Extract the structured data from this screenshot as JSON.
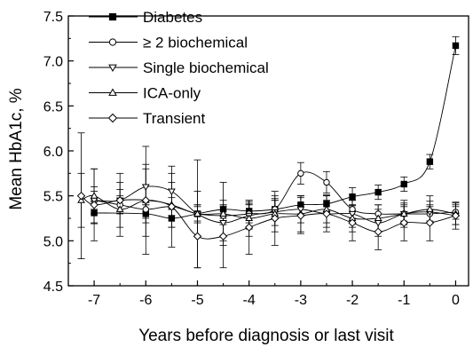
{
  "chart_data": {
    "type": "line",
    "title": "",
    "xlabel": "Years before diagnosis or last visit",
    "ylabel": "Mean HbA1c, %",
    "xlim": [
      -7.5,
      0.25
    ],
    "ylim": [
      4.5,
      7.5
    ],
    "xticks": [
      -7,
      -6,
      -5,
      -4,
      -3,
      -2,
      -1,
      0
    ],
    "yticks": [
      4.5,
      5.0,
      5.5,
      6.0,
      6.5,
      7.0,
      7.5
    ],
    "xtick_labels": [
      "-7",
      "-6",
      "-5",
      "-4",
      "-3",
      "-2",
      "-1",
      "0"
    ],
    "ytick_labels": [
      "4.5",
      "5.0",
      "5.5",
      "6.0",
      "6.5",
      "7.0",
      "7.5"
    ],
    "grid": false,
    "legend_position": "top-left",
    "series": [
      {
        "name": "Diabetes",
        "marker": "filled-square",
        "x": [
          -7,
          -6,
          -5.5,
          -5,
          -4.5,
          -4,
          -3.5,
          -3,
          -2.5,
          -2,
          -1.5,
          -1,
          -0.5,
          0
        ],
        "y": [
          5.31,
          5.3,
          5.25,
          5.3,
          5.35,
          5.33,
          5.35,
          5.4,
          5.41,
          5.49,
          5.54,
          5.63,
          5.88,
          7.17
        ],
        "err": [
          0.12,
          0.1,
          0.1,
          0.08,
          0.1,
          0.08,
          0.1,
          0.1,
          0.1,
          0.1,
          0.08,
          0.08,
          0.08,
          0.1
        ]
      },
      {
        "name": "≥ 2 biochemical",
        "marker": "open-circle",
        "x": [
          -7,
          -6.5,
          -6,
          -5.5,
          -5,
          -4.5,
          -4,
          -3.5,
          -3,
          -2.5,
          -2,
          -1.5,
          -1,
          -0.5,
          0
        ],
        "y": [
          5.45,
          5.4,
          5.35,
          5.38,
          5.3,
          5.28,
          5.3,
          5.35,
          5.75,
          5.65,
          5.35,
          5.3,
          5.3,
          5.3,
          5.32
        ],
        "err": [
          0.1,
          0.1,
          0.1,
          0.1,
          0.1,
          0.1,
          0.1,
          0.1,
          0.12,
          0.12,
          0.1,
          0.1,
          0.08,
          0.08,
          0.08
        ]
      },
      {
        "name": "Single biochemical",
        "marker": "open-triangle-down",
        "x": [
          -7,
          -6.5,
          -6,
          -5.5,
          -5,
          -4.5,
          -4,
          -3.5,
          -3,
          -2.5,
          -2,
          -1.5,
          -1,
          -0.5,
          0
        ],
        "y": [
          5.45,
          5.45,
          5.6,
          5.55,
          5.3,
          5.2,
          5.28,
          5.32,
          5.35,
          5.3,
          5.3,
          5.2,
          5.3,
          5.32,
          5.28
        ],
        "err": [
          0.15,
          0.12,
          0.2,
          0.2,
          0.25,
          0.2,
          0.15,
          0.15,
          0.15,
          0.15,
          0.15,
          0.15,
          0.12,
          0.12,
          0.1
        ]
      },
      {
        "name": "ICA-only",
        "marker": "open-triangle-up",
        "x": [
          -7.25,
          -7,
          -6.5,
          -6,
          -5.5,
          -5,
          -4.5,
          -4,
          -3.5,
          -3,
          -2.5,
          -2,
          -1.5,
          -1,
          -0.5,
          0
        ],
        "y": [
          5.45,
          5.5,
          5.35,
          5.45,
          5.4,
          5.3,
          5.3,
          5.25,
          5.3,
          5.3,
          5.35,
          5.25,
          5.25,
          5.3,
          5.35,
          5.3
        ],
        "err": [
          0.3,
          0.3,
          0.3,
          0.4,
          0.25,
          0.6,
          0.35,
          0.2,
          0.2,
          0.2,
          0.15,
          0.15,
          0.15,
          0.15,
          0.15,
          0.12
        ]
      },
      {
        "name": "Transient",
        "marker": "open-diamond",
        "x": [
          -7.25,
          -7,
          -6.5,
          -6,
          -5.5,
          -5,
          -4.5,
          -4,
          -3.5,
          -3,
          -2.5,
          -2,
          -1.5,
          -1,
          -0.5,
          0
        ],
        "y": [
          5.5,
          5.4,
          5.45,
          5.45,
          5.38,
          5.05,
          5.05,
          5.15,
          5.25,
          5.28,
          5.3,
          5.2,
          5.1,
          5.2,
          5.2,
          5.28
        ],
        "err": [
          0.7,
          0.4,
          0.3,
          0.6,
          0.45,
          0.35,
          0.35,
          0.3,
          0.3,
          0.2,
          0.2,
          0.2,
          0.2,
          0.2,
          0.2,
          0.15
        ]
      }
    ]
  }
}
